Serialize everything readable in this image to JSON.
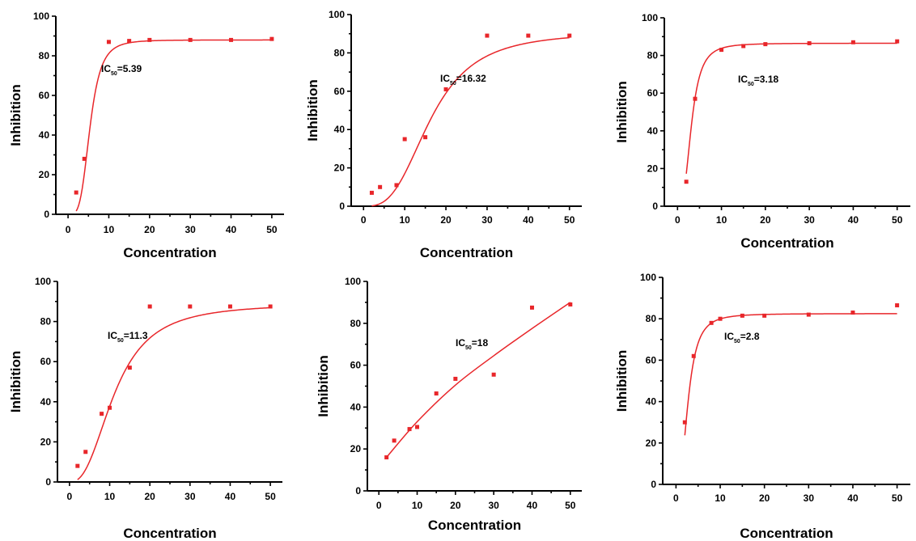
{
  "colors": {
    "series": "#e8262a",
    "axes": "#000000"
  },
  "chart_data": [
    {
      "type": "scatter",
      "xlabel": "Concentration",
      "ylabel": "Inhibition",
      "xlim": [
        -3,
        53
      ],
      "ylim": [
        0,
        100
      ],
      "xticks": [
        "0",
        "10",
        "20",
        "30",
        "40",
        "50"
      ],
      "yticks": [
        "0",
        "20",
        "40",
        "60",
        "80",
        "100"
      ],
      "annotation": {
        "prefix": "IC",
        "sub": "50",
        "value": "=5.39"
      },
      "points": [
        [
          2,
          11
        ],
        [
          4,
          28
        ],
        [
          10,
          87
        ],
        [
          15,
          87.5
        ],
        [
          20,
          88
        ],
        [
          30,
          88
        ],
        [
          40,
          88
        ],
        [
          50,
          88.5
        ]
      ],
      "fit": {
        "model": "hill",
        "bottom": 0,
        "top": 88,
        "ic50": 5.39,
        "hill": 4
      }
    },
    {
      "type": "scatter",
      "xlabel": "Concentration",
      "ylabel": "Inhibition",
      "xlim": [
        -3,
        53
      ],
      "ylim": [
        0,
        100
      ],
      "xticks": [
        "0",
        "10",
        "20",
        "30",
        "40",
        "50"
      ],
      "yticks": [
        "0",
        "20",
        "40",
        "60",
        "80",
        "100"
      ],
      "annotation": {
        "prefix": "IC",
        "sub": "50",
        "value": "=16.32"
      },
      "points": [
        [
          2,
          7
        ],
        [
          4,
          10
        ],
        [
          8,
          11
        ],
        [
          10,
          35
        ],
        [
          15,
          36
        ],
        [
          20,
          61
        ],
        [
          30,
          89
        ],
        [
          40,
          89
        ],
        [
          50,
          89
        ]
      ],
      "fit": {
        "model": "hill",
        "bottom": 0,
        "top": 91,
        "ic50": 16.32,
        "hill": 3
      }
    },
    {
      "type": "scatter",
      "xlabel": "Concentration",
      "ylabel": "Inhibition",
      "xlim": [
        -3,
        53
      ],
      "ylim": [
        0,
        100
      ],
      "xticks": [
        "0",
        "10",
        "20",
        "30",
        "40",
        "50"
      ],
      "yticks": [
        "0",
        "20",
        "40",
        "60",
        "80",
        "100"
      ],
      "annotation": {
        "prefix": "IC",
        "sub": "50",
        "value": "=3.18"
      },
      "points": [
        [
          2,
          13
        ],
        [
          4,
          57
        ],
        [
          10,
          83
        ],
        [
          15,
          85
        ],
        [
          20,
          86
        ],
        [
          30,
          86.5
        ],
        [
          40,
          87
        ],
        [
          50,
          87.5
        ]
      ],
      "fit": {
        "model": "hill",
        "bottom": 0,
        "top": 86.5,
        "ic50": 3.18,
        "hill": 3
      }
    },
    {
      "type": "scatter",
      "xlabel": "Concentration",
      "ylabel": "Inhibition",
      "xlim": [
        -3,
        53
      ],
      "ylim": [
        0,
        100
      ],
      "xticks": [
        "0",
        "10",
        "20",
        "30",
        "40",
        "50"
      ],
      "yticks": [
        "0",
        "20",
        "40",
        "60",
        "80",
        "100"
      ],
      "annotation": {
        "prefix": "IC",
        "sub": "50",
        "value": "=11.3"
      },
      "points": [
        [
          2,
          8
        ],
        [
          4,
          15
        ],
        [
          8,
          34
        ],
        [
          10,
          37
        ],
        [
          15,
          57
        ],
        [
          20,
          87.5
        ],
        [
          30,
          87.5
        ],
        [
          40,
          87.5
        ],
        [
          50,
          87.5
        ]
      ],
      "fit": {
        "model": "hill",
        "bottom": 0,
        "top": 89,
        "ic50": 11.3,
        "hill": 2.5
      }
    },
    {
      "type": "scatter",
      "xlabel": "Concentration",
      "ylabel": "Inhibition",
      "xlim": [
        -3,
        53
      ],
      "ylim": [
        0,
        100
      ],
      "xticks": [
        "0",
        "10",
        "20",
        "30",
        "40",
        "50"
      ],
      "yticks": [
        "0",
        "20",
        "40",
        "60",
        "80",
        "100"
      ],
      "annotation": {
        "prefix": "IC",
        "sub": "50",
        "value": "=18"
      },
      "points": [
        [
          2,
          16
        ],
        [
          4,
          24
        ],
        [
          8,
          29.5
        ],
        [
          10,
          30.5
        ],
        [
          15,
          46.5
        ],
        [
          20,
          53.5
        ],
        [
          30,
          55.5
        ],
        [
          40,
          87.5
        ],
        [
          50,
          89
        ]
      ],
      "fit": {
        "model": "smooth",
        "x": [
          2,
          10,
          20,
          30,
          40,
          50
        ],
        "y": [
          16,
          33,
          50.5,
          64.5,
          77.5,
          90
        ]
      }
    },
    {
      "type": "scatter",
      "xlabel": "Concentration",
      "ylabel": "Inhibition",
      "xlim": [
        -3,
        53
      ],
      "ylim": [
        0,
        100
      ],
      "xticks": [
        "0",
        "10",
        "20",
        "30",
        "40",
        "50"
      ],
      "yticks": [
        "0",
        "20",
        "40",
        "60",
        "80",
        "100"
      ],
      "annotation": {
        "prefix": "IC",
        "sub": "50",
        "value": "=2.8"
      },
      "points": [
        [
          2,
          30
        ],
        [
          4,
          62
        ],
        [
          8,
          78
        ],
        [
          10,
          80
        ],
        [
          15,
          81.5
        ],
        [
          20,
          81.5
        ],
        [
          30,
          82
        ],
        [
          40,
          83
        ],
        [
          50,
          86.5
        ]
      ],
      "fit": {
        "model": "hill",
        "bottom": 0,
        "top": 82.5,
        "ic50": 2.8,
        "hill": 2.7
      }
    }
  ]
}
